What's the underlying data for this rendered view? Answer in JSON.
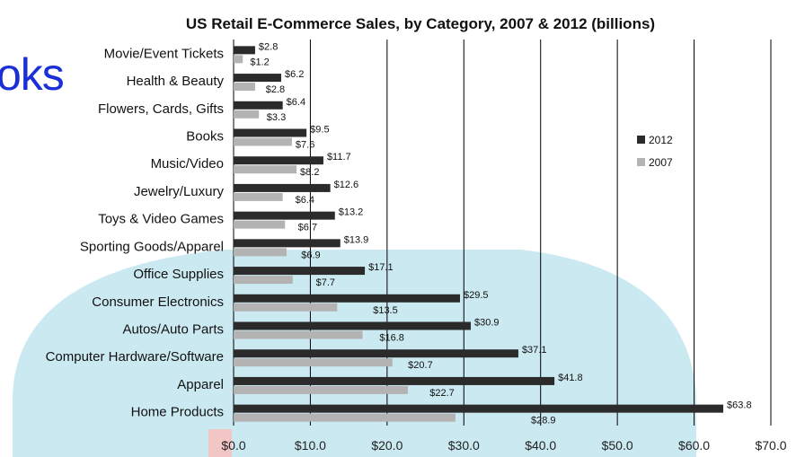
{
  "overlay_text": "oks",
  "colors": {
    "series_2012": "#2b2b2b",
    "series_2007": "#b3b3b3",
    "grid": "#000000",
    "background_arc": "#cbe9f1",
    "overlay_text": "#1b2fd6"
  },
  "chart_data": {
    "type": "bar",
    "orientation": "horizontal",
    "title": "US Retail E-Commerce Sales, by Category, 2007 & 2012 (billions)",
    "xlabel": "",
    "ylabel": "",
    "xlim": [
      0,
      70
    ],
    "x_ticks": [
      "$0.0",
      "$10.0",
      "$20.0",
      "$30.0",
      "$40.0",
      "$50.0",
      "$60.0",
      "$70.0"
    ],
    "grid": "vertical",
    "legend_position": "right",
    "categories": [
      "Movie/Event Tickets",
      "Health & Beauty",
      "Flowers, Cards, Gifts",
      "Books",
      "Music/Video",
      "Jewelry/Luxury",
      "Toys & Video Games",
      "Sporting Goods/Apparel",
      "Office Supplies",
      "Consumer Electronics",
      "Autos/Auto Parts",
      "Computer Hardware/Software",
      "Apparel",
      "Home Products"
    ],
    "series": [
      {
        "name": "2012",
        "values": [
          2.8,
          6.2,
          6.4,
          9.5,
          11.7,
          12.6,
          13.2,
          13.9,
          17.1,
          29.5,
          30.9,
          37.1,
          41.8,
          63.8
        ],
        "labels": [
          "$2.8",
          "$6.2",
          "$6.4",
          "$9.5",
          "$11.7",
          "$12.6",
          "$13.2",
          "$13.9",
          "$17.1",
          "$29.5",
          "$30.9",
          "$37.1",
          "$41.8",
          "$63.8"
        ]
      },
      {
        "name": "2007",
        "values": [
          1.2,
          2.8,
          3.3,
          7.6,
          8.2,
          6.4,
          6.7,
          6.9,
          7.7,
          13.5,
          16.8,
          20.7,
          22.7,
          28.9
        ],
        "labels": [
          "$1.2",
          "$2.8",
          "$3.3",
          "$7.6",
          "$8.2",
          "$6.4",
          "$6.7",
          "$6.9",
          "$7.7",
          "$13.5",
          "$16.8",
          "$20.7",
          "$22.7",
          "$28.9"
        ]
      }
    ]
  }
}
